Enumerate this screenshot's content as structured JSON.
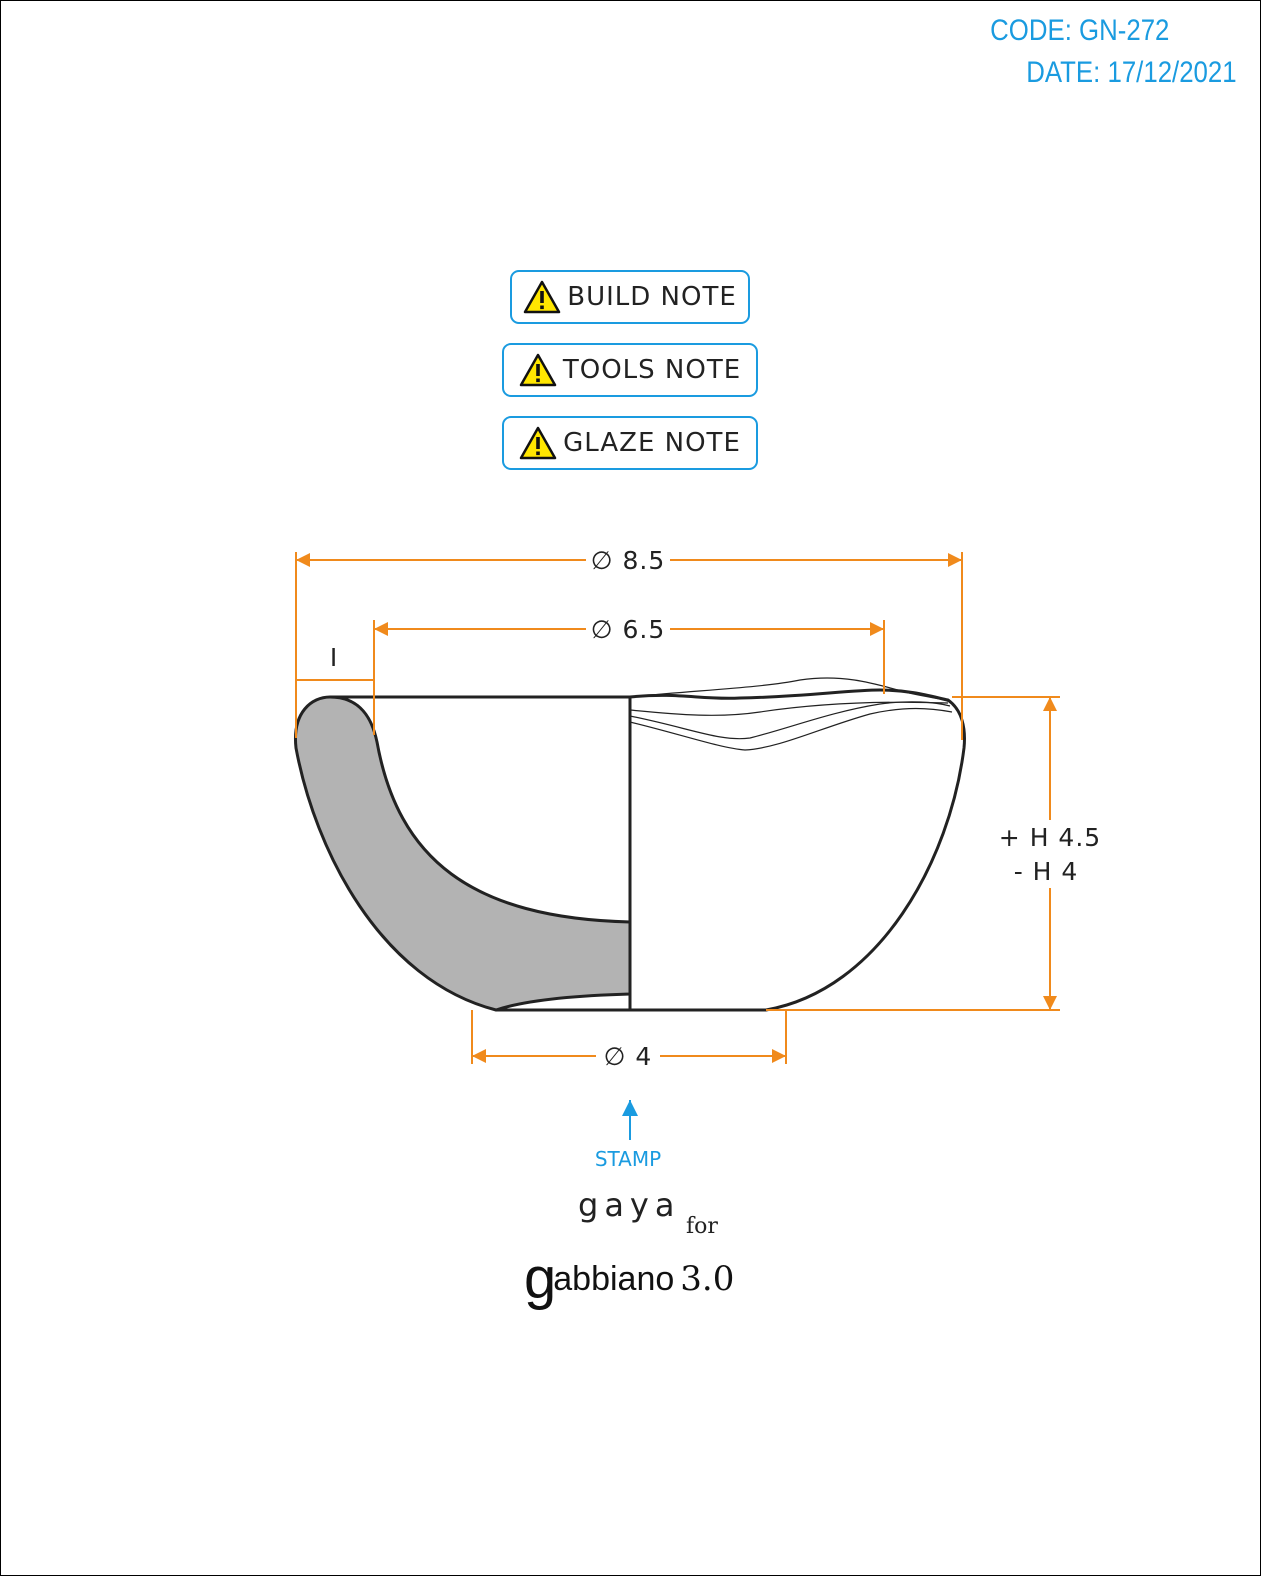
{
  "header": {
    "code": "CODE: GN-272",
    "date": "DATE: 17/12/2021"
  },
  "notes": [
    {
      "label": "BUILD NOTE",
      "icon": "warning-icon"
    },
    {
      "label": "TOOLS NOTE",
      "icon": "warning-icon"
    },
    {
      "label": "GLAZE NOTE",
      "icon": "warning-icon"
    }
  ],
  "dimensions": {
    "outer_diameter": "∅ 8.5",
    "inner_diameter": "∅ 6.5",
    "wall": "I",
    "height_max": "+ H 4.5",
    "height_min": "- H 4",
    "base_diameter": "∅ 4"
  },
  "stamp": {
    "label": "STAMP"
  },
  "brand": {
    "gaya": "gaya",
    "for": "for",
    "g": "g",
    "name": "abbiano",
    "version": "3.0"
  },
  "colors": {
    "accent_blue": "#1a9be0",
    "dimension_orange": "#f08a1c",
    "section_fill": "#b3b3b3",
    "warning_yellow": "#ffe600"
  }
}
